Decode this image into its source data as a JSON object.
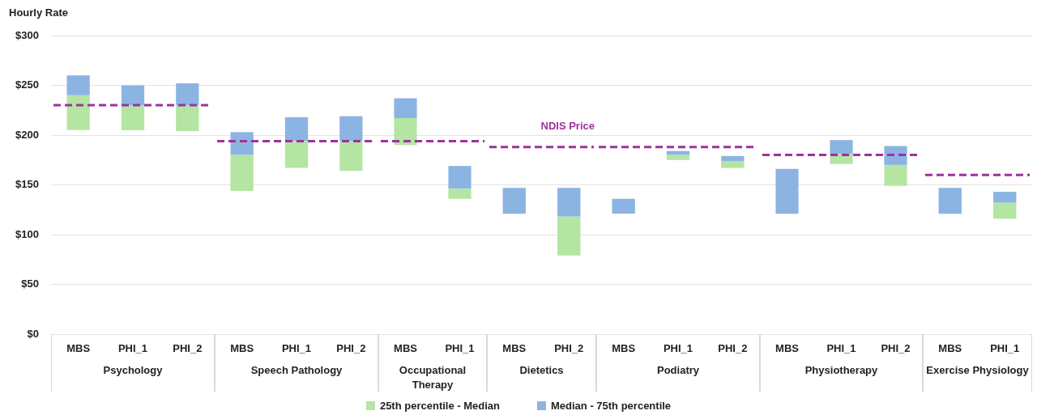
{
  "chart_data": [
    {
      "type": "bar",
      "ylabel": "Hourly Rate",
      "xlabel": "Psychology",
      "categories": [
        "MBS",
        "PHI_1",
        "PHI_2"
      ],
      "series": [
        {
          "color": "#b4e5a2",
          "base": [
            205,
            205,
            204
          ],
          "values": [
            35,
            25,
            26
          ]
        },
        {
          "color": "#8cb4e2",
          "base": [
            240,
            230,
            230
          ],
          "values": [
            20,
            20,
            22
          ]
        }
      ],
      "ylim": [
        0,
        300
      ],
      "yticks": [
        {
          "value": 0,
          "label": "$0"
        },
        {
          "value": 50,
          "label": "$50"
        },
        {
          "value": 100,
          "label": "$100"
        },
        {
          "value": 150,
          "label": "$150"
        },
        {
          "value": 200,
          "label": "$200"
        },
        {
          "value": 250,
          "label": "$250"
        },
        {
          "value": 300,
          "label": "$300"
        }
      ],
      "grid": "y",
      "ref_lines": [
        {
          "axis": "y",
          "value": 230,
          "color": "#a0309f",
          "line_style": "dashed"
        }
      ]
    },
    {
      "type": "bar",
      "xlabel": "Speech Pathology",
      "categories": [
        "MBS",
        "PHI_1",
        "PHI_2"
      ],
      "series": [
        {
          "color": "#b4e5a2",
          "base": [
            144,
            167,
            164
          ],
          "values": [
            36,
            27,
            30
          ]
        },
        {
          "color": "#8cb4e2",
          "base": [
            180,
            194,
            194
          ],
          "values": [
            23,
            24,
            25
          ]
        }
      ],
      "ylim": [
        0,
        300
      ],
      "yticks": [
        0,
        50,
        100,
        150,
        200,
        250,
        300
      ],
      "grid": "y",
      "tick_labels": "x",
      "ref_lines": [
        {
          "axis": "y",
          "value": 194,
          "color": "#a0309f",
          "line_style": "dashed"
        }
      ]
    },
    {
      "type": "bar",
      "xlabel": "Occupational Therapy",
      "categories": [
        "MBS",
        "PHI_1"
      ],
      "series": [
        {
          "color": "#b4e5a2",
          "base": [
            190,
            136
          ],
          "values": [
            27,
            10
          ]
        },
        {
          "color": "#8cb4e2",
          "base": [
            217,
            146
          ],
          "values": [
            20,
            23
          ]
        }
      ],
      "ylim": [
        0,
        300
      ],
      "yticks": [
        0,
        50,
        100,
        150,
        200,
        250,
        300
      ],
      "grid": "y",
      "tick_labels": "x",
      "ref_lines": [
        {
          "axis": "y",
          "value": 194,
          "color": "#a0309f",
          "line_style": "dashed"
        }
      ]
    },
    {
      "type": "bar",
      "xlabel": "Dietetics",
      "categories": [
        "MBS",
        "PHI_2"
      ],
      "series": [
        {
          "name": "25th percentile - Median",
          "color": "#b4e5a2",
          "base": [
            null,
            79
          ],
          "values": [
            null,
            39
          ]
        },
        {
          "name": "Median - 75th percentile",
          "color": "#8cb4e2",
          "base": [
            121,
            118
          ],
          "values": [
            26,
            29
          ]
        }
      ],
      "ylim": [
        0,
        300
      ],
      "yticks": [
        0,
        50,
        100,
        150,
        200,
        250,
        300
      ],
      "grid": "y",
      "tick_labels": "x",
      "legend": "bottom",
      "ref_lines": [
        {
          "axis": "y",
          "value": 188,
          "label": "NDIS Price",
          "color": "#a0309f",
          "line_style": "dashed"
        }
      ]
    },
    {
      "type": "bar",
      "xlabel": "Podiatry",
      "categories": [
        "MBS",
        "PHI_1",
        "PHI_2"
      ],
      "series": [
        {
          "color": "#b4e5a2",
          "base": [
            null,
            175,
            167
          ],
          "values": [
            null,
            5,
            7
          ]
        },
        {
          "color": "#8cb4e2",
          "base": [
            121,
            180,
            174
          ],
          "values": [
            15,
            4,
            5
          ]
        }
      ],
      "ylim": [
        0,
        300
      ],
      "yticks": [
        0,
        50,
        100,
        150,
        200,
        250,
        300
      ],
      "grid": "y",
      "tick_labels": "x",
      "ref_lines": [
        {
          "axis": "y",
          "value": 188,
          "color": "#a0309f",
          "line_style": "dashed"
        }
      ]
    },
    {
      "type": "bar",
      "xlabel": "Physiotherapy",
      "categories": [
        "MBS",
        "PHI_1",
        "PHI_2"
      ],
      "series": [
        {
          "color": "#b4e5a2",
          "base": [
            null,
            171,
            149
          ],
          "values": [
            null,
            10,
            21
          ]
        },
        {
          "color": "#8cb4e2",
          "base": [
            121,
            181,
            170
          ],
          "values": [
            45,
            14,
            19
          ]
        }
      ],
      "ylim": [
        0,
        300
      ],
      "yticks": [
        0,
        50,
        100,
        150,
        200,
        250,
        300
      ],
      "grid": "y",
      "tick_labels": "x",
      "ref_lines": [
        {
          "axis": "y",
          "value": 180,
          "color": "#a0309f",
          "line_style": "dashed"
        }
      ]
    },
    {
      "type": "bar",
      "xlabel": "Exercise Physiology",
      "categories": [
        "MBS",
        "PHI_1"
      ],
      "series": [
        {
          "color": "#b4e5a2",
          "base": [
            null,
            116
          ],
          "values": [
            null,
            16
          ]
        },
        {
          "color": "#8cb4e2",
          "base": [
            121,
            132
          ],
          "values": [
            26,
            11
          ]
        }
      ],
      "ylim": [
        0,
        300
      ],
      "yticks": [
        0,
        50,
        100,
        150,
        200,
        250,
        300
      ],
      "grid": "y",
      "tick_labels": "x",
      "ref_lines": [
        {
          "axis": "y",
          "value": 160,
          "color": "#a0309f",
          "line_style": "dashed"
        }
      ]
    }
  ]
}
